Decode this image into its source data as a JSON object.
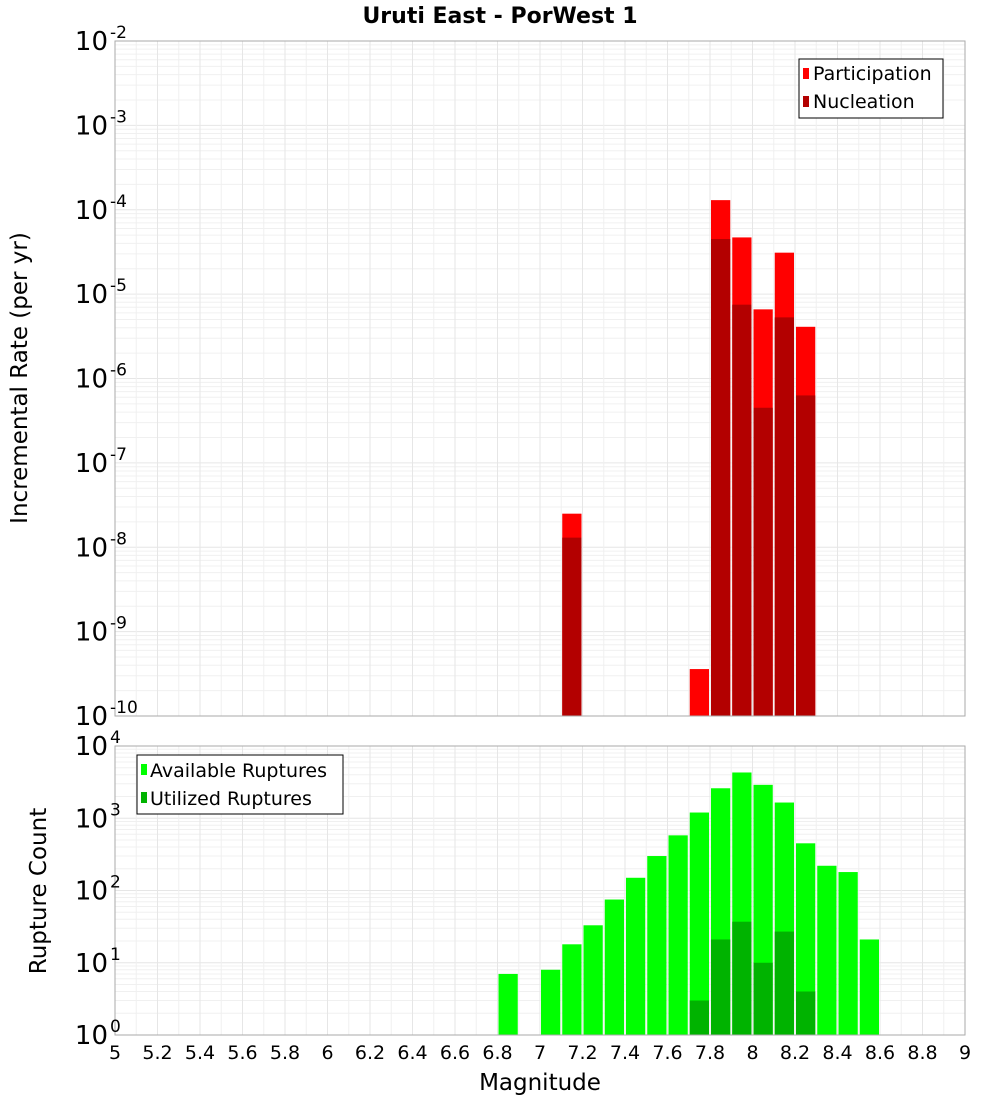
{
  "chart_data": [
    {
      "type": "bar",
      "title": "Uruti East - PorWest 1",
      "xlabel": "",
      "ylabel": "Incremental Rate (per yr)",
      "yscale": "log",
      "ylim": [
        1e-10,
        0.01
      ],
      "xlim": [
        5,
        9
      ],
      "legend_position": "top-right",
      "y_tick_exponents": [
        "-10",
        "-9",
        "-8",
        "-7",
        "-6",
        "-5",
        "-4",
        "-3",
        "-2"
      ],
      "series": [
        {
          "name": "Participation",
          "color": "#ff0000",
          "points": [
            {
              "x": 7.15,
              "y": 2.5e-08
            },
            {
              "x": 7.75,
              "y": 3.6e-10
            },
            {
              "x": 7.85,
              "y": 0.00013
            },
            {
              "x": 7.95,
              "y": 4.7e-05
            },
            {
              "x": 8.05,
              "y": 6.6e-06
            },
            {
              "x": 8.15,
              "y": 3.1e-05
            },
            {
              "x": 8.25,
              "y": 4.1e-06
            }
          ]
        },
        {
          "name": "Nucleation",
          "color": "#b30000",
          "points": [
            {
              "x": 7.15,
              "y": 1.3e-08
            },
            {
              "x": 7.85,
              "y": 4.5e-05
            },
            {
              "x": 7.95,
              "y": 7.5e-06
            },
            {
              "x": 8.05,
              "y": 4.5e-07
            },
            {
              "x": 8.15,
              "y": 5.3e-06
            },
            {
              "x": 8.25,
              "y": 6.3e-07
            }
          ]
        }
      ]
    },
    {
      "type": "bar",
      "title": "",
      "xlabel": "Magnitude",
      "ylabel": "Rupture Count",
      "yscale": "log",
      "ylim": [
        1,
        10000
      ],
      "xlim": [
        5,
        9
      ],
      "legend_position": "top-left",
      "x_ticks": [
        "5",
        "5.2",
        "5.4",
        "5.6",
        "5.8",
        "6",
        "6.2",
        "6.4",
        "6.6",
        "6.8",
        "7",
        "7.2",
        "7.4",
        "7.6",
        "7.8",
        "8",
        "8.2",
        "8.4",
        "8.6",
        "8.8",
        "9"
      ],
      "y_tick_exponents": [
        "0",
        "1",
        "2",
        "3",
        "4"
      ],
      "series": [
        {
          "name": "Available Ruptures",
          "color": "#00ff00",
          "points": [
            {
              "x": 6.85,
              "y": 7
            },
            {
              "x": 6.95,
              "y": 1
            },
            {
              "x": 7.05,
              "y": 8
            },
            {
              "x": 7.15,
              "y": 18
            },
            {
              "x": 7.25,
              "y": 33
            },
            {
              "x": 7.35,
              "y": 75
            },
            {
              "x": 7.45,
              "y": 150
            },
            {
              "x": 7.55,
              "y": 300
            },
            {
              "x": 7.65,
              "y": 580
            },
            {
              "x": 7.75,
              "y": 1200
            },
            {
              "x": 7.85,
              "y": 2600
            },
            {
              "x": 7.95,
              "y": 4300
            },
            {
              "x": 8.05,
              "y": 2900
            },
            {
              "x": 8.15,
              "y": 1650
            },
            {
              "x": 8.25,
              "y": 450
            },
            {
              "x": 8.35,
              "y": 220
            },
            {
              "x": 8.45,
              "y": 180
            },
            {
              "x": 8.55,
              "y": 21
            }
          ]
        },
        {
          "name": "Utilized Ruptures",
          "color": "#00b300",
          "points": [
            {
              "x": 7.15,
              "y": 1
            },
            {
              "x": 7.45,
              "y": 1
            },
            {
              "x": 7.75,
              "y": 3
            },
            {
              "x": 7.85,
              "y": 21
            },
            {
              "x": 7.95,
              "y": 37
            },
            {
              "x": 8.05,
              "y": 10
            },
            {
              "x": 8.15,
              "y": 27
            },
            {
              "x": 8.25,
              "y": 4
            }
          ]
        }
      ]
    }
  ]
}
